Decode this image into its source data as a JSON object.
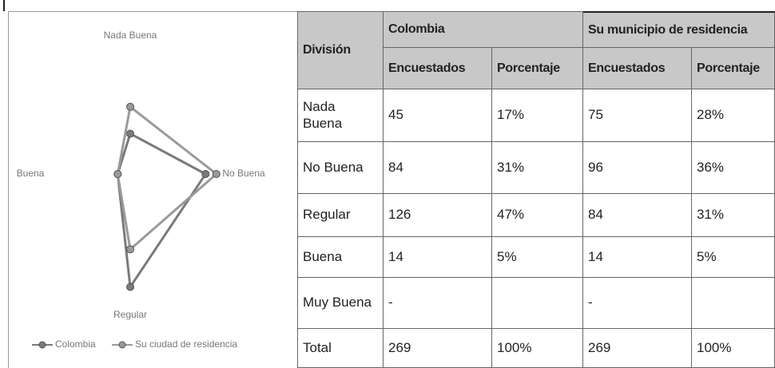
{
  "chart_data": {
    "type": "radar",
    "categories": [
      "Nada Buena",
      "No Buena",
      "Regular",
      "Buena"
    ],
    "series": [
      {
        "name": "Colombia",
        "color": "#7a7a7a",
        "values": [
          45,
          84,
          126,
          14
        ]
      },
      {
        "name": "Su ciudad de residencia",
        "color": "#9a9a9a",
        "values": [
          75,
          96,
          84,
          14
        ]
      }
    ],
    "rlim": [
      0,
      130
    ]
  },
  "table": {
    "header": {
      "division": "División",
      "groups": [
        "Colombia",
        "Su municipio de residencia"
      ],
      "sub": [
        "Encuestados",
        "Porcentaje",
        "Encuestados",
        "Porcentaje"
      ]
    },
    "rows": [
      [
        "Nada Buena",
        "45",
        "17%",
        "75",
        "28%"
      ],
      [
        "No Buena",
        "84",
        "31%",
        "96",
        "36%"
      ],
      [
        "Regular",
        "126",
        "47%",
        "84",
        "31%"
      ],
      [
        "Buena",
        "14",
        "5%",
        "14",
        "5%"
      ],
      [
        "Muy Buena",
        "-",
        null,
        "-",
        null
      ],
      [
        "Total",
        "269",
        "100%",
        "269",
        "100%"
      ]
    ]
  }
}
